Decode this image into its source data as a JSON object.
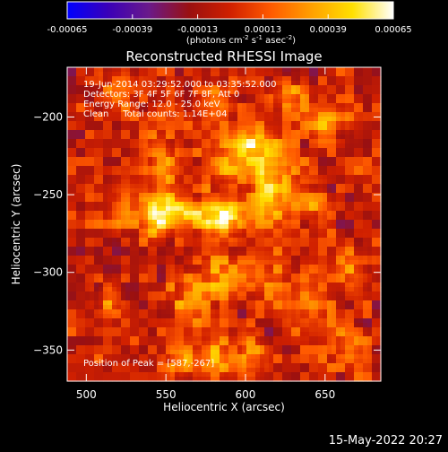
{
  "chart_data": {
    "type": "heatmap",
    "title": "Reconstructed RHESSI Image",
    "info_lines": [
      "19-Jun-2014 03:29:52.000 to 03:35:52.000",
      "Detectors: 3F 4F 5F 6F 7F 8F, Att 0",
      "Energy Range: 12.0 - 25.0 keV",
      "Clean     Total counts: 1.14E+04"
    ],
    "peak_label": "Position of Peak = [587,-267]",
    "xlabel": "Heliocentric X (arcsec)",
    "ylabel": "Heliocentric Y (arcsec)",
    "xlim": [
      488,
      685
    ],
    "ylim": [
      -370,
      -168
    ],
    "x_ticks": [
      500,
      550,
      600,
      650
    ],
    "y_ticks": [
      -350,
      -300,
      -250,
      -200
    ],
    "colorbar": {
      "range": [
        -0.00065,
        0.00065
      ],
      "ticks": [
        "-0.00065",
        "-0.00039",
        "-0.00013",
        "0.00013",
        "0.00039",
        "0.00065"
      ],
      "unit_main": "(photons cm",
      "unit_exp1": "-2",
      "unit_mid": " s",
      "unit_exp2": "-1",
      "unit_end": " asec",
      "unit_exp3": "-2",
      "unit_close": ")"
    },
    "colormap": [
      "#0000ff",
      "#3a00b8",
      "#6a1a8a",
      "#9a1010",
      "#d02000",
      "#ff5a00",
      "#ffa000",
      "#ffe000",
      "#ffffff"
    ],
    "sources": [
      {
        "x": 545,
        "y": -262,
        "amp": 0.00052,
        "sx": 8,
        "sy": 10
      },
      {
        "x": 586,
        "y": -266,
        "amp": 0.00058,
        "sx": 9,
        "sy": 8
      },
      {
        "x": 615,
        "y": -245,
        "amp": 0.00056,
        "sx": 9,
        "sy": 16
      },
      {
        "x": 547,
        "y": -230,
        "amp": 0.00036,
        "sx": 7,
        "sy": 11
      },
      {
        "x": 563,
        "y": -260,
        "amp": 0.0004,
        "sx": 10,
        "sy": 6
      },
      {
        "x": 603,
        "y": -218,
        "amp": 0.0004,
        "sx": 11,
        "sy": 7
      },
      {
        "x": 590,
        "y": -233,
        "amp": 0.00034,
        "sx": 8,
        "sy": 8
      },
      {
        "x": 650,
        "y": -205,
        "amp": 0.0003,
        "sx": 10,
        "sy": 7
      },
      {
        "x": 640,
        "y": -255,
        "amp": 0.00026,
        "sx": 9,
        "sy": 10
      },
      {
        "x": 600,
        "y": -300,
        "amp": 0.0003,
        "sx": 22,
        "sy": 8
      },
      {
        "x": 568,
        "y": -315,
        "amp": 0.00026,
        "sx": 12,
        "sy": 12
      },
      {
        "x": 580,
        "y": -355,
        "amp": 0.0003,
        "sx": 9,
        "sy": 9
      },
      {
        "x": 603,
        "y": -352,
        "amp": 0.00034,
        "sx": 6,
        "sy": 9
      },
      {
        "x": 560,
        "y": -358,
        "amp": 0.0003,
        "sx": 6,
        "sy": 8
      },
      {
        "x": 525,
        "y": -258,
        "amp": 0.00026,
        "sx": 7,
        "sy": 12
      },
      {
        "x": 515,
        "y": -315,
        "amp": 0.00024,
        "sx": 6,
        "sy": 7
      },
      {
        "x": 640,
        "y": -320,
        "amp": 0.0002,
        "sx": 10,
        "sy": 12
      },
      {
        "x": 668,
        "y": -300,
        "amp": 0.00022,
        "sx": 7,
        "sy": 10
      },
      {
        "x": 665,
        "y": -345,
        "amp": 0.00022,
        "sx": 8,
        "sy": 8
      },
      {
        "x": 520,
        "y": -180,
        "amp": 0.00022,
        "sx": 8,
        "sy": 8
      },
      {
        "x": 580,
        "y": -190,
        "amp": 0.00028,
        "sx": 10,
        "sy": 8
      },
      {
        "x": 625,
        "y": -185,
        "amp": 0.00026,
        "sx": 9,
        "sy": 7
      }
    ]
  },
  "footer": {
    "timestamp": "15-May-2022 20:27"
  }
}
